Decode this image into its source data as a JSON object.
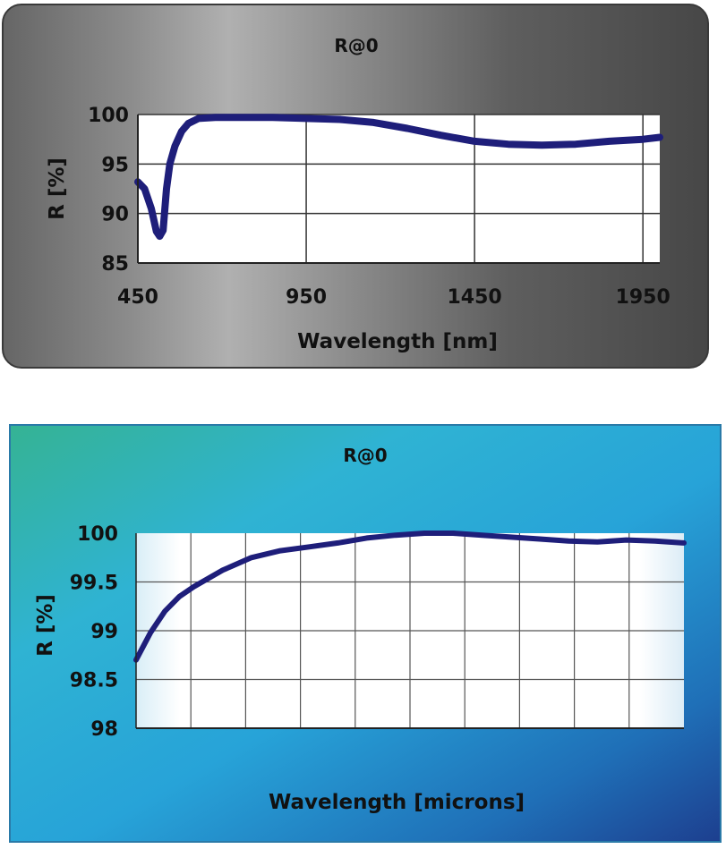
{
  "chart_data": [
    {
      "type": "line",
      "title": "R@0",
      "xlabel": "Wavelength [nm]",
      "ylabel": "R [%]",
      "xlim": [
        450,
        2000
      ],
      "ylim": [
        85,
        100
      ],
      "x_ticks": [
        "450",
        "950",
        "1450",
        "1950"
      ],
      "y_ticks": [
        "100",
        "95",
        "90",
        "85"
      ],
      "grid": true,
      "line_color": "#1e1e7a",
      "x": [
        450,
        470,
        490,
        505,
        515,
        525,
        535,
        545,
        560,
        580,
        600,
        630,
        680,
        750,
        850,
        950,
        1050,
        1150,
        1250,
        1350,
        1450,
        1550,
        1650,
        1750,
        1850,
        1950,
        2000
      ],
      "y": [
        93.2,
        92.5,
        90.5,
        88.2,
        87.7,
        88.3,
        92.5,
        95.0,
        96.8,
        98.3,
        99.1,
        99.6,
        99.7,
        99.7,
        99.7,
        99.6,
        99.5,
        99.2,
        98.6,
        97.9,
        97.3,
        97.0,
        96.9,
        97.0,
        97.3,
        97.5,
        97.7
      ]
    },
    {
      "type": "line",
      "title": "R@0",
      "xlabel": "Wavelength [microns]",
      "ylabel": "R [%]",
      "ylim": [
        98,
        100
      ],
      "y_ticks": [
        "100",
        "99.5",
        "99",
        "98.5",
        "98"
      ],
      "grid": true,
      "line_color": "#1e1e7a",
      "x": [
        0,
        0.25,
        0.5,
        0.75,
        1,
        1.5,
        2,
        2.5,
        3,
        3.5,
        4,
        4.5,
        5,
        5.5,
        6,
        6.5,
        7,
        7.5,
        8,
        8.5,
        9,
        9.5
      ],
      "y": [
        98.7,
        98.98,
        99.2,
        99.35,
        99.45,
        99.62,
        99.75,
        99.82,
        99.86,
        99.9,
        99.95,
        99.98,
        100.0,
        100.0,
        99.98,
        99.96,
        99.94,
        99.92,
        99.91,
        99.93,
        99.92,
        99.9
      ]
    }
  ]
}
